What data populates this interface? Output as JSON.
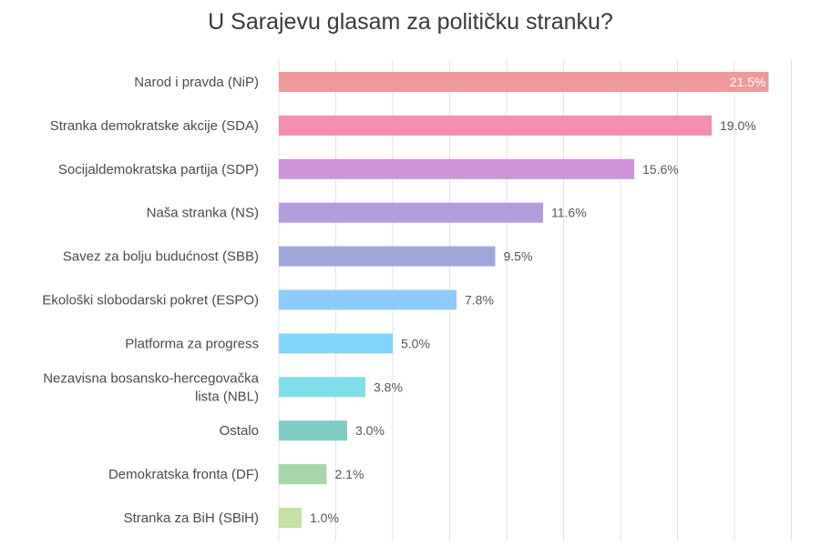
{
  "chart_data": {
    "type": "bar",
    "orientation": "horizontal",
    "title": "U Sarajevu glasam za političku stranku?",
    "xlabel": "",
    "ylabel": "",
    "xlim": [
      0,
      22.5
    ],
    "grid": true,
    "legend": "none",
    "categories": [
      "Narod i pravda (NiP)",
      "Stranka demokratske akcije (SDA)",
      "Socijaldemokratska partija (SDP)",
      "Naša stranka (NS)",
      "Savez za bolju budućnost (SBB)",
      "Ekološki slobodarski pokret (ESPO)",
      "Platforma za progress",
      "Nezavisna bosansko-hercegovačka lista (NBL)",
      "Ostalo",
      "Demokratska fronta (DF)",
      "Stranka za BiH (SBiH)"
    ],
    "category_lines": [
      [
        "Narod i pravda (NiP)"
      ],
      [
        "Stranka demokratske akcije (SDA)"
      ],
      [
        "Socijaldemokratska partija (SDP)"
      ],
      [
        "Naša stranka (NS)"
      ],
      [
        "Savez za bolju budućnost (SBB)"
      ],
      [
        "Ekološki slobodarski pokret (ESPO)"
      ],
      [
        "Platforma za progress"
      ],
      [
        "Nezavisna bosansko-hercegovačka",
        "lista (NBL)"
      ],
      [
        "Ostalo"
      ],
      [
        "Demokratska fronta (DF)"
      ],
      [
        "Stranka za BiH (SBiH)"
      ]
    ],
    "values": [
      21.5,
      19.0,
      15.6,
      11.6,
      9.5,
      7.8,
      5.0,
      3.8,
      3.0,
      2.1,
      1.0
    ],
    "value_labels": [
      "21.5%",
      "19.0%",
      "15.6%",
      "11.6%",
      "9.5%",
      "7.8%",
      "5.0%",
      "3.8%",
      "3.0%",
      "2.1%",
      "1.0%"
    ],
    "colors": [
      "#ef9a9a",
      "#f48fb1",
      "#ce93d8",
      "#b39ddb",
      "#9fa8da",
      "#90caf9",
      "#81d4fa",
      "#80deea",
      "#80cbc4",
      "#a5d6a7",
      "#c5e1a5"
    ]
  }
}
